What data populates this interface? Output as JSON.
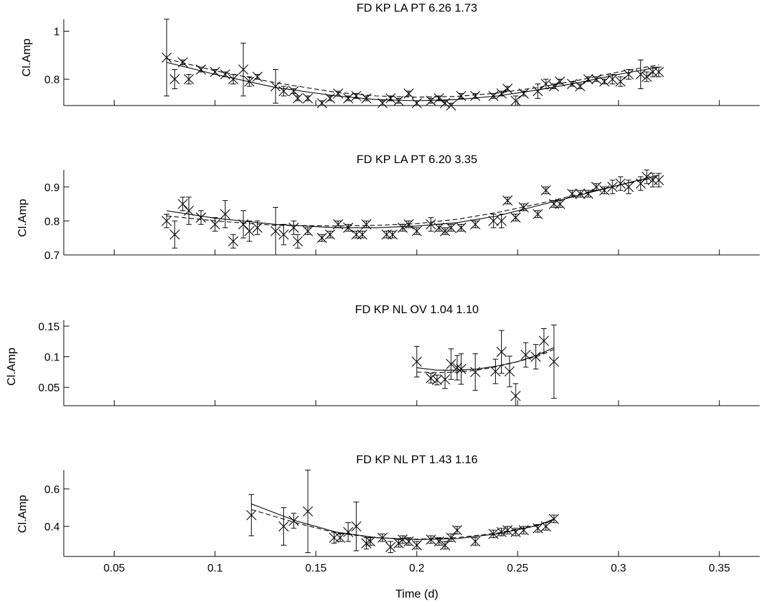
{
  "chart_data": [
    {
      "type": "scatter",
      "title": "FD KP LA PT  6.26  1.73",
      "ylabel": "Cl.Amp",
      "xlim": [
        0.025,
        0.37
      ],
      "ylim": [
        0.69,
        1.05
      ],
      "yticks": [
        "0.8",
        "1"
      ],
      "ytick_values": [
        0.8,
        1.0
      ],
      "points": [
        {
          "x": 0.076,
          "y": 0.89,
          "err": 0.16
        },
        {
          "x": 0.08,
          "y": 0.8,
          "err": 0.04
        },
        {
          "x": 0.084,
          "y": 0.87,
          "err": 0.01
        },
        {
          "x": 0.087,
          "y": 0.8,
          "err": 0.02
        },
        {
          "x": 0.093,
          "y": 0.84,
          "err": 0.01
        },
        {
          "x": 0.1,
          "y": 0.83,
          "err": 0.01
        },
        {
          "x": 0.105,
          "y": 0.82,
          "err": 0.01
        },
        {
          "x": 0.109,
          "y": 0.8,
          "err": 0.02
        },
        {
          "x": 0.114,
          "y": 0.84,
          "err": 0.11
        },
        {
          "x": 0.117,
          "y": 0.79,
          "err": 0.02
        },
        {
          "x": 0.121,
          "y": 0.81,
          "err": 0.01
        },
        {
          "x": 0.13,
          "y": 0.77,
          "err": 0.07
        },
        {
          "x": 0.134,
          "y": 0.75,
          "err": 0.02
        },
        {
          "x": 0.139,
          "y": 0.75,
          "err": 0.01
        },
        {
          "x": 0.141,
          "y": 0.72,
          "err": 0.01
        },
        {
          "x": 0.146,
          "y": 0.72,
          "err": 0.01
        },
        {
          "x": 0.153,
          "y": 0.7,
          "err": 0.01
        },
        {
          "x": 0.157,
          "y": 0.72,
          "err": 0.01
        },
        {
          "x": 0.161,
          "y": 0.74,
          "err": 0.01
        },
        {
          "x": 0.166,
          "y": 0.72,
          "err": 0.01
        },
        {
          "x": 0.17,
          "y": 0.73,
          "err": 0.01
        },
        {
          "x": 0.175,
          "y": 0.72,
          "err": 0.01
        },
        {
          "x": 0.183,
          "y": 0.7,
          "err": 0.01
        },
        {
          "x": 0.187,
          "y": 0.72,
          "err": 0.01
        },
        {
          "x": 0.191,
          "y": 0.71,
          "err": 0.01
        },
        {
          "x": 0.196,
          "y": 0.74,
          "err": 0.01
        },
        {
          "x": 0.2,
          "y": 0.7,
          "err": 0.01
        },
        {
          "x": 0.207,
          "y": 0.71,
          "err": 0.01
        },
        {
          "x": 0.211,
          "y": 0.72,
          "err": 0.01
        },
        {
          "x": 0.214,
          "y": 0.7,
          "err": 0.01
        },
        {
          "x": 0.217,
          "y": 0.69,
          "err": 0.01
        },
        {
          "x": 0.222,
          "y": 0.73,
          "err": 0.01
        },
        {
          "x": 0.229,
          "y": 0.73,
          "err": 0.01
        },
        {
          "x": 0.238,
          "y": 0.73,
          "err": 0.01
        },
        {
          "x": 0.242,
          "y": 0.74,
          "err": 0.01
        },
        {
          "x": 0.245,
          "y": 0.76,
          "err": 0.01
        },
        {
          "x": 0.249,
          "y": 0.71,
          "err": 0.02
        },
        {
          "x": 0.253,
          "y": 0.74,
          "err": 0.01
        },
        {
          "x": 0.26,
          "y": 0.75,
          "err": 0.03
        },
        {
          "x": 0.264,
          "y": 0.78,
          "err": 0.02
        },
        {
          "x": 0.268,
          "y": 0.77,
          "err": 0.01
        },
        {
          "x": 0.271,
          "y": 0.79,
          "err": 0.01
        },
        {
          "x": 0.277,
          "y": 0.78,
          "err": 0.01
        },
        {
          "x": 0.281,
          "y": 0.77,
          "err": 0.01
        },
        {
          "x": 0.285,
          "y": 0.8,
          "err": 0.01
        },
        {
          "x": 0.289,
          "y": 0.8,
          "err": 0.01
        },
        {
          "x": 0.293,
          "y": 0.79,
          "err": 0.01
        },
        {
          "x": 0.297,
          "y": 0.8,
          "err": 0.02
        },
        {
          "x": 0.301,
          "y": 0.79,
          "err": 0.02
        },
        {
          "x": 0.305,
          "y": 0.82,
          "err": 0.02
        },
        {
          "x": 0.311,
          "y": 0.82,
          "err": 0.06
        },
        {
          "x": 0.314,
          "y": 0.81,
          "err": 0.02
        },
        {
          "x": 0.317,
          "y": 0.83,
          "err": 0.02
        },
        {
          "x": 0.32,
          "y": 0.83,
          "err": 0.02
        }
      ],
      "fit_solid": {
        "x": [
          0.076,
          0.1,
          0.13,
          0.16,
          0.18,
          0.2,
          0.22,
          0.24,
          0.26,
          0.28,
          0.3,
          0.32
        ],
        "y": [
          0.87,
          0.82,
          0.765,
          0.73,
          0.715,
          0.71,
          0.715,
          0.73,
          0.755,
          0.785,
          0.82,
          0.85
        ]
      },
      "fit_dashed": {
        "x": [
          0.076,
          0.1,
          0.13,
          0.16,
          0.18,
          0.2,
          0.22,
          0.24,
          0.26,
          0.28,
          0.3,
          0.32
        ],
        "y": [
          0.885,
          0.835,
          0.785,
          0.745,
          0.73,
          0.725,
          0.728,
          0.742,
          0.765,
          0.795,
          0.83,
          0.86
        ]
      }
    },
    {
      "type": "scatter",
      "title": "FD KP LA PT  6.20  3.35",
      "ylabel": "Cl.Amp",
      "xlim": [
        0.025,
        0.37
      ],
      "ylim": [
        0.7,
        0.95
      ],
      "yticks": [
        "0.7",
        "0.8",
        "0.9"
      ],
      "ytick_values": [
        0.7,
        0.8,
        0.9
      ],
      "points": [
        {
          "x": 0.076,
          "y": 0.8,
          "err": 0.02
        },
        {
          "x": 0.08,
          "y": 0.76,
          "err": 0.04
        },
        {
          "x": 0.084,
          "y": 0.85,
          "err": 0.02
        },
        {
          "x": 0.087,
          "y": 0.83,
          "err": 0.04
        },
        {
          "x": 0.093,
          "y": 0.81,
          "err": 0.02
        },
        {
          "x": 0.1,
          "y": 0.79,
          "err": 0.02
        },
        {
          "x": 0.105,
          "y": 0.82,
          "err": 0.04
        },
        {
          "x": 0.109,
          "y": 0.74,
          "err": 0.02
        },
        {
          "x": 0.114,
          "y": 0.79,
          "err": 0.04
        },
        {
          "x": 0.117,
          "y": 0.77,
          "err": 0.03
        },
        {
          "x": 0.121,
          "y": 0.78,
          "err": 0.02
        },
        {
          "x": 0.13,
          "y": 0.77,
          "err": 0.07
        },
        {
          "x": 0.134,
          "y": 0.76,
          "err": 0.03
        },
        {
          "x": 0.139,
          "y": 0.78,
          "err": 0.02
        },
        {
          "x": 0.141,
          "y": 0.74,
          "err": 0.02
        },
        {
          "x": 0.146,
          "y": 0.77,
          "err": 0.01
        },
        {
          "x": 0.153,
          "y": 0.75,
          "err": 0.01
        },
        {
          "x": 0.157,
          "y": 0.76,
          "err": 0.01
        },
        {
          "x": 0.161,
          "y": 0.79,
          "err": 0.01
        },
        {
          "x": 0.166,
          "y": 0.78,
          "err": 0.01
        },
        {
          "x": 0.17,
          "y": 0.76,
          "err": 0.01
        },
        {
          "x": 0.173,
          "y": 0.76,
          "err": 0.01
        },
        {
          "x": 0.175,
          "y": 0.79,
          "err": 0.01
        },
        {
          "x": 0.185,
          "y": 0.76,
          "err": 0.01
        },
        {
          "x": 0.188,
          "y": 0.76,
          "err": 0.01
        },
        {
          "x": 0.193,
          "y": 0.78,
          "err": 0.01
        },
        {
          "x": 0.196,
          "y": 0.79,
          "err": 0.01
        },
        {
          "x": 0.2,
          "y": 0.77,
          "err": 0.01
        },
        {
          "x": 0.207,
          "y": 0.79,
          "err": 0.02
        },
        {
          "x": 0.211,
          "y": 0.78,
          "err": 0.01
        },
        {
          "x": 0.214,
          "y": 0.77,
          "err": 0.01
        },
        {
          "x": 0.217,
          "y": 0.78,
          "err": 0.01
        },
        {
          "x": 0.222,
          "y": 0.78,
          "err": 0.01
        },
        {
          "x": 0.229,
          "y": 0.79,
          "err": 0.01
        },
        {
          "x": 0.238,
          "y": 0.8,
          "err": 0.02
        },
        {
          "x": 0.242,
          "y": 0.8,
          "err": 0.02
        },
        {
          "x": 0.245,
          "y": 0.86,
          "err": 0.01
        },
        {
          "x": 0.249,
          "y": 0.81,
          "err": 0.01
        },
        {
          "x": 0.253,
          "y": 0.84,
          "err": 0.01
        },
        {
          "x": 0.26,
          "y": 0.82,
          "err": 0.01
        },
        {
          "x": 0.264,
          "y": 0.89,
          "err": 0.01
        },
        {
          "x": 0.268,
          "y": 0.85,
          "err": 0.01
        },
        {
          "x": 0.271,
          "y": 0.85,
          "err": 0.01
        },
        {
          "x": 0.277,
          "y": 0.88,
          "err": 0.01
        },
        {
          "x": 0.281,
          "y": 0.88,
          "err": 0.01
        },
        {
          "x": 0.285,
          "y": 0.88,
          "err": 0.01
        },
        {
          "x": 0.289,
          "y": 0.9,
          "err": 0.01
        },
        {
          "x": 0.293,
          "y": 0.89,
          "err": 0.01
        },
        {
          "x": 0.297,
          "y": 0.9,
          "err": 0.02
        },
        {
          "x": 0.301,
          "y": 0.91,
          "err": 0.02
        },
        {
          "x": 0.305,
          "y": 0.9,
          "err": 0.02
        },
        {
          "x": 0.311,
          "y": 0.91,
          "err": 0.02
        },
        {
          "x": 0.314,
          "y": 0.93,
          "err": 0.02
        },
        {
          "x": 0.317,
          "y": 0.92,
          "err": 0.02
        },
        {
          "x": 0.32,
          "y": 0.92,
          "err": 0.02
        }
      ],
      "fit_solid": {
        "x": [
          0.076,
          0.1,
          0.13,
          0.16,
          0.18,
          0.2,
          0.22,
          0.24,
          0.26,
          0.28,
          0.3,
          0.32
        ],
        "y": [
          0.83,
          0.808,
          0.79,
          0.78,
          0.78,
          0.785,
          0.795,
          0.815,
          0.845,
          0.875,
          0.905,
          0.935
        ]
      },
      "fit_dashed": {
        "x": [
          0.076,
          0.1,
          0.13,
          0.16,
          0.18,
          0.2,
          0.22,
          0.24,
          0.26,
          0.28,
          0.3,
          0.32
        ],
        "y": [
          0.815,
          0.8,
          0.787,
          0.785,
          0.787,
          0.792,
          0.805,
          0.825,
          0.85,
          0.878,
          0.905,
          0.93
        ]
      }
    },
    {
      "type": "scatter",
      "title": "FD KP NL OV  1.04  1.10",
      "ylabel": "Cl.Amp",
      "xlim": [
        0.025,
        0.37
      ],
      "ylim": [
        0.02,
        0.16
      ],
      "yticks": [
        "0.05",
        "0.1",
        "0.15"
      ],
      "ytick_values": [
        0.05,
        0.1,
        0.15
      ],
      "points": [
        {
          "x": 0.2,
          "y": 0.092,
          "err": 0.025
        },
        {
          "x": 0.207,
          "y": 0.065,
          "err": 0.008
        },
        {
          "x": 0.21,
          "y": 0.062,
          "err": 0.008
        },
        {
          "x": 0.214,
          "y": 0.063,
          "err": 0.015
        },
        {
          "x": 0.217,
          "y": 0.088,
          "err": 0.025
        },
        {
          "x": 0.22,
          "y": 0.082,
          "err": 0.02
        },
        {
          "x": 0.222,
          "y": 0.08,
          "err": 0.025
        },
        {
          "x": 0.229,
          "y": 0.075,
          "err": 0.03
        },
        {
          "x": 0.239,
          "y": 0.076,
          "err": 0.02
        },
        {
          "x": 0.242,
          "y": 0.108,
          "err": 0.035
        },
        {
          "x": 0.246,
          "y": 0.076,
          "err": 0.025
        },
        {
          "x": 0.249,
          "y": 0.036,
          "err": 0.02
        },
        {
          "x": 0.254,
          "y": 0.103,
          "err": 0.02
        },
        {
          "x": 0.259,
          "y": 0.1,
          "err": 0.02
        },
        {
          "x": 0.263,
          "y": 0.126,
          "err": 0.02
        },
        {
          "x": 0.268,
          "y": 0.092,
          "err": 0.06
        }
      ],
      "fit_solid": {
        "x": [
          0.2,
          0.21,
          0.22,
          0.23,
          0.24,
          0.25,
          0.26,
          0.268
        ],
        "y": [
          0.082,
          0.078,
          0.078,
          0.08,
          0.085,
          0.092,
          0.103,
          0.115
        ]
      },
      "fit_dashed": {
        "x": [
          0.2,
          0.21,
          0.22,
          0.23,
          0.24,
          0.25,
          0.26,
          0.268
        ],
        "y": [
          0.075,
          0.074,
          0.075,
          0.078,
          0.084,
          0.092,
          0.101,
          0.112
        ]
      }
    },
    {
      "type": "scatter",
      "title": "FD KP NL PT  1.43  1.16",
      "xlabel": "Time (d)",
      "ylabel": "Cl.Amp",
      "xlim": [
        0.025,
        0.37
      ],
      "ylim": [
        0.24,
        0.7
      ],
      "yticks": [
        "0.4",
        "0.6"
      ],
      "ytick_values": [
        0.4,
        0.6
      ],
      "xticks": [
        "0.05",
        "0.1",
        "0.15",
        "0.2",
        "0.25",
        "0.3",
        "0.35"
      ],
      "xtick_values": [
        0.05,
        0.1,
        0.15,
        0.2,
        0.25,
        0.3,
        0.35
      ],
      "points": [
        {
          "x": 0.118,
          "y": 0.46,
          "err": 0.11
        },
        {
          "x": 0.134,
          "y": 0.4,
          "err": 0.1
        },
        {
          "x": 0.139,
          "y": 0.43,
          "err": 0.04
        },
        {
          "x": 0.146,
          "y": 0.48,
          "err": 0.22
        },
        {
          "x": 0.159,
          "y": 0.34,
          "err": 0.03
        },
        {
          "x": 0.162,
          "y": 0.34,
          "err": 0.02
        },
        {
          "x": 0.166,
          "y": 0.37,
          "err": 0.05
        },
        {
          "x": 0.17,
          "y": 0.4,
          "err": 0.13
        },
        {
          "x": 0.175,
          "y": 0.31,
          "err": 0.03
        },
        {
          "x": 0.177,
          "y": 0.32,
          "err": 0.02
        },
        {
          "x": 0.183,
          "y": 0.34,
          "err": 0.02
        },
        {
          "x": 0.187,
          "y": 0.29,
          "err": 0.03
        },
        {
          "x": 0.191,
          "y": 0.31,
          "err": 0.02
        },
        {
          "x": 0.193,
          "y": 0.33,
          "err": 0.02
        },
        {
          "x": 0.196,
          "y": 0.32,
          "err": 0.02
        },
        {
          "x": 0.2,
          "y": 0.3,
          "err": 0.02
        },
        {
          "x": 0.207,
          "y": 0.33,
          "err": 0.02
        },
        {
          "x": 0.211,
          "y": 0.32,
          "err": 0.02
        },
        {
          "x": 0.214,
          "y": 0.3,
          "err": 0.02
        },
        {
          "x": 0.217,
          "y": 0.34,
          "err": 0.02
        },
        {
          "x": 0.22,
          "y": 0.38,
          "err": 0.02
        },
        {
          "x": 0.229,
          "y": 0.32,
          "err": 0.02
        },
        {
          "x": 0.238,
          "y": 0.36,
          "err": 0.02
        },
        {
          "x": 0.242,
          "y": 0.37,
          "err": 0.02
        },
        {
          "x": 0.245,
          "y": 0.38,
          "err": 0.02
        },
        {
          "x": 0.249,
          "y": 0.37,
          "err": 0.02
        },
        {
          "x": 0.253,
          "y": 0.38,
          "err": 0.02
        },
        {
          "x": 0.26,
          "y": 0.39,
          "err": 0.02
        },
        {
          "x": 0.264,
          "y": 0.4,
          "err": 0.02
        },
        {
          "x": 0.268,
          "y": 0.44,
          "err": 0.02
        }
      ],
      "fit_solid": {
        "x": [
          0.118,
          0.14,
          0.16,
          0.18,
          0.2,
          0.22,
          0.24,
          0.26,
          0.268
        ],
        "y": [
          0.52,
          0.43,
          0.37,
          0.34,
          0.33,
          0.335,
          0.36,
          0.405,
          0.44
        ]
      },
      "fit_dashed": {
        "x": [
          0.118,
          0.14,
          0.16,
          0.18,
          0.2,
          0.22,
          0.24,
          0.26,
          0.268
        ],
        "y": [
          0.49,
          0.42,
          0.365,
          0.34,
          0.332,
          0.34,
          0.365,
          0.408,
          0.435
        ]
      }
    }
  ]
}
